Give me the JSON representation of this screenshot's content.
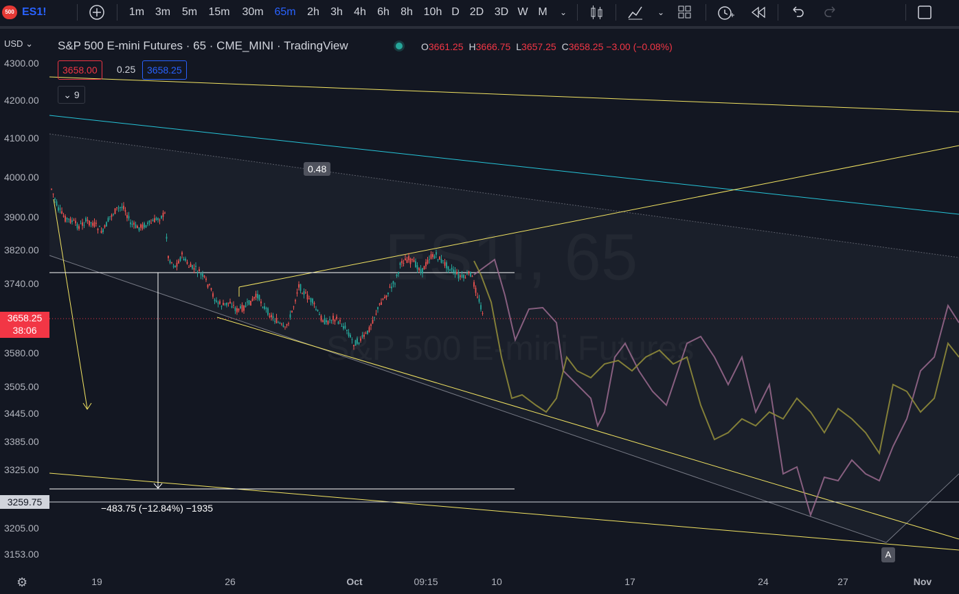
{
  "toolbar": {
    "symbol": "ES1!",
    "logo_text": "500",
    "add_symbol_icon": "plus-circle-icon",
    "intervals": [
      "1m",
      "3m",
      "5m",
      "15m",
      "30m",
      "65m",
      "2h",
      "3h",
      "4h",
      "6h",
      "8h",
      "10h",
      "D",
      "2D",
      "3D",
      "W",
      "M"
    ],
    "active_interval": "65m",
    "icons": [
      "chevron-down-icon",
      "candles-icon",
      "indicators-icon",
      "chevron-down-icon",
      "layout-icon",
      "alert-icon",
      "replay-icon",
      "undo-icon",
      "redo-icon",
      "fullscreen-icon"
    ]
  },
  "legend": {
    "title": "S&P 500 E-mini Futures · 65 · CME_MINI · TradingView",
    "status_color": "#26a69a",
    "ohlc": [
      {
        "k": "O",
        "v": "3661.25"
      },
      {
        "k": "H",
        "v": "3666.75"
      },
      {
        "k": "L",
        "v": "3657.25"
      },
      {
        "k": "C",
        "v": "3658.25 −3.00 (−0.08%)"
      }
    ],
    "bid": "3658.00",
    "spread": "0.25",
    "ask": "3658.25",
    "indicator_count": "9"
  },
  "price_axis": {
    "currency": "USD",
    "ticks": [
      "4300.00",
      "4200.00",
      "4100.00",
      "4000.00",
      "3900.00",
      "3820.00",
      "3740.00",
      "3580.00",
      "3505.00",
      "3445.00",
      "3385.00",
      "3325.00",
      "3205.00",
      "3153.00"
    ],
    "current_price": "3658.25",
    "countdown": "38:06",
    "level_price": "3259.75"
  },
  "time_axis": {
    "ticks": [
      "19",
      "26",
      "Oct",
      "09:15",
      "10",
      "17",
      "24",
      "27",
      "Nov"
    ]
  },
  "drawings": {
    "fib_label": "0.48",
    "measure_label": "−483.75 (−12.84%) −1935",
    "marker_label": "A"
  },
  "watermark": {
    "line1": "ES1!, 65",
    "line2": "S&P 500 E-mini Futures"
  },
  "colors": {
    "background": "#131722",
    "up": "#26a69a",
    "down": "#ef5350",
    "trendline": "#f5e663",
    "cyan_line": "#26c6da",
    "projection_purple": "#9c6b8f",
    "projection_olive": "#8f8a3a"
  }
}
